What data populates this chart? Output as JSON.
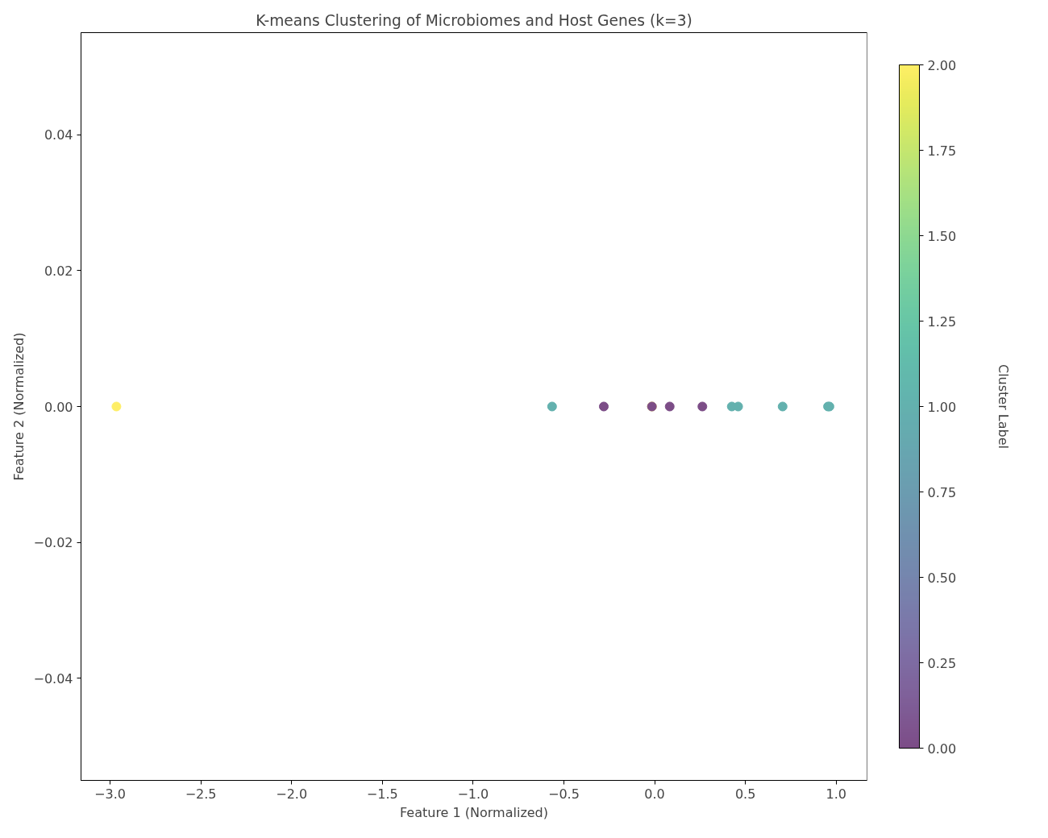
{
  "chart_data": {
    "type": "scatter",
    "title": "K-means Clustering of Microbiomes and Host Genes (k=3)",
    "xlabel": "Feature 1 (Normalized)",
    "ylabel": "Feature 2 (Normalized)",
    "clabel": "Cluster Label",
    "x": [
      -2.965,
      -0.565,
      -0.28,
      -0.015,
      -0.015,
      0.083,
      0.263,
      0.425,
      0.46,
      0.705,
      0.955,
      0.963
    ],
    "values": [
      0,
      0,
      0,
      0,
      0,
      0,
      0,
      0,
      0,
      0,
      0,
      0
    ],
    "cvalues": [
      2,
      1,
      0,
      2,
      0,
      0,
      0,
      1,
      1,
      1,
      1,
      1
    ],
    "marker": "circle",
    "xlim": [
      -3.16,
      1.17
    ],
    "xticks": [
      {
        "value": -3.0,
        "label": "−3.0"
      },
      {
        "value": -2.5,
        "label": "−2.5"
      },
      {
        "value": -2.0,
        "label": "−2.0"
      },
      {
        "value": -1.5,
        "label": "−1.5"
      },
      {
        "value": -1.0,
        "label": "−1.0"
      },
      {
        "value": -0.5,
        "label": "−0.5"
      },
      {
        "value": 0.0,
        "label": "0.0"
      },
      {
        "value": 0.5,
        "label": "0.5"
      },
      {
        "value": 1.0,
        "label": "1.0"
      }
    ],
    "ylim": [
      -0.055,
      0.055
    ],
    "yticks": [
      {
        "value": -0.04,
        "label": "−0.04"
      },
      {
        "value": -0.02,
        "label": "−0.02"
      },
      {
        "value": 0.0,
        "label": "0.00"
      },
      {
        "value": 0.02,
        "label": "0.02"
      },
      {
        "value": 0.04,
        "label": "0.04"
      }
    ],
    "clim": [
      0,
      2
    ],
    "cticks": [
      {
        "value": 0,
        "label": "0.00"
      },
      {
        "value": 0.25,
        "label": "0.25"
      },
      {
        "value": 0.5,
        "label": "0.50"
      },
      {
        "value": 0.75,
        "label": "0.75"
      },
      {
        "value": 1.0,
        "label": "1.00"
      },
      {
        "value": 1.25,
        "label": "1.25"
      },
      {
        "value": 1.5,
        "label": "1.50"
      },
      {
        "value": 1.75,
        "label": "1.75"
      },
      {
        "value": 2.0,
        "label": "2.00"
      }
    ],
    "grid": false
  }
}
